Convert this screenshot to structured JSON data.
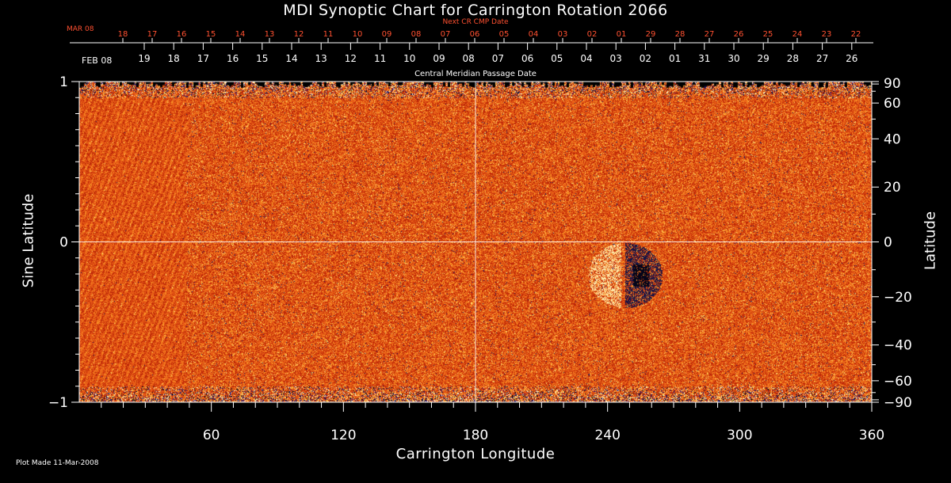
{
  "chart_data": {
    "type": "heatmap",
    "title": "MDI Synoptic Chart for Carrington Rotation 2066",
    "xlabel": "Carrington Longitude",
    "ylabel_left": "Sine Latitude",
    "ylabel_right": "Latitude",
    "xlim": [
      0,
      360
    ],
    "ylim": [
      -1,
      1
    ],
    "x_ticks": [
      60,
      120,
      180,
      240,
      300,
      360
    ],
    "y_ticks_left": [
      -1,
      0,
      1
    ],
    "y_ticks_right": [
      90,
      60,
      40,
      20,
      0,
      -20,
      -40,
      -60,
      -90
    ],
    "y_tick_labels_right": [
      "90",
      "60",
      "40",
      "20",
      "0",
      "−20",
      "−40",
      "−60",
      "−90"
    ],
    "y_tick_labels_left": [
      "−1",
      "0",
      "1"
    ],
    "current_rotation_dates": {
      "label": "Central Meridian Passage Date",
      "start_label": "FEB 08",
      "days": [
        "19",
        "18",
        "17",
        "16",
        "15",
        "14",
        "13",
        "12",
        "11",
        "10",
        "09",
        "08",
        "07",
        "06",
        "05",
        "04",
        "03",
        "02",
        "01",
        "31",
        "30",
        "29",
        "28",
        "27",
        "26"
      ]
    },
    "next_rotation_dates": {
      "label": "Next CR CMP Date",
      "start_label": "MAR 08",
      "days": [
        "18",
        "17",
        "16",
        "15",
        "14",
        "13",
        "12",
        "11",
        "10",
        "09",
        "08",
        "07",
        "06",
        "05",
        "04",
        "03",
        "02",
        "01",
        "29",
        "28",
        "27",
        "26",
        "25",
        "24",
        "23",
        "22"
      ]
    },
    "active_region": {
      "longitude": 248,
      "latitude_deg": -12,
      "description": "bipolar sunspot region"
    },
    "colors": {
      "background": "#000000",
      "field_low": "#b02008",
      "field_mid": "#e85a12",
      "field_high": "#ffd060",
      "negative": "#1a1a60",
      "next_cr_text": "#ff5030"
    }
  },
  "footer": "Plot Made 11-Mar-2008"
}
